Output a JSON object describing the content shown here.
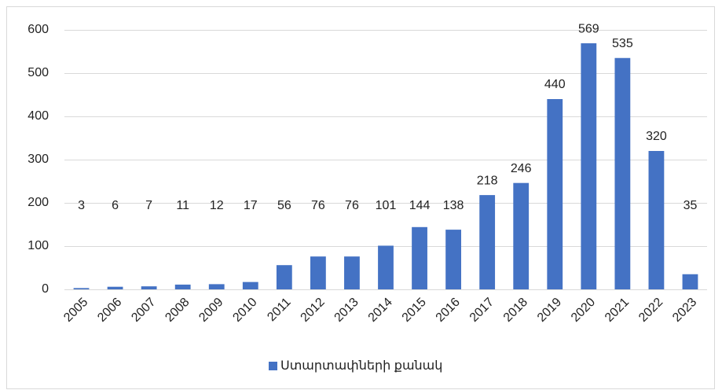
{
  "chart_data": {
    "type": "bar",
    "categories": [
      "2005",
      "2006",
      "2007",
      "2008",
      "2009",
      "2010",
      "2011",
      "2012",
      "2013",
      "2014",
      "2015",
      "2016",
      "2017",
      "2018",
      "2019",
      "2020",
      "2021",
      "2022",
      "2023"
    ],
    "series": [
      {
        "name": "Ստարտափների քանակ",
        "color": "#4472c4",
        "values": [
          3,
          6,
          7,
          11,
          12,
          17,
          56,
          76,
          76,
          101,
          144,
          138,
          218,
          246,
          440,
          569,
          535,
          320,
          35
        ]
      }
    ],
    "ylim": [
      0,
      600
    ],
    "yticks": [
      0,
      100,
      200,
      300,
      400,
      500,
      600
    ],
    "grid": true,
    "legend": "bottom"
  }
}
